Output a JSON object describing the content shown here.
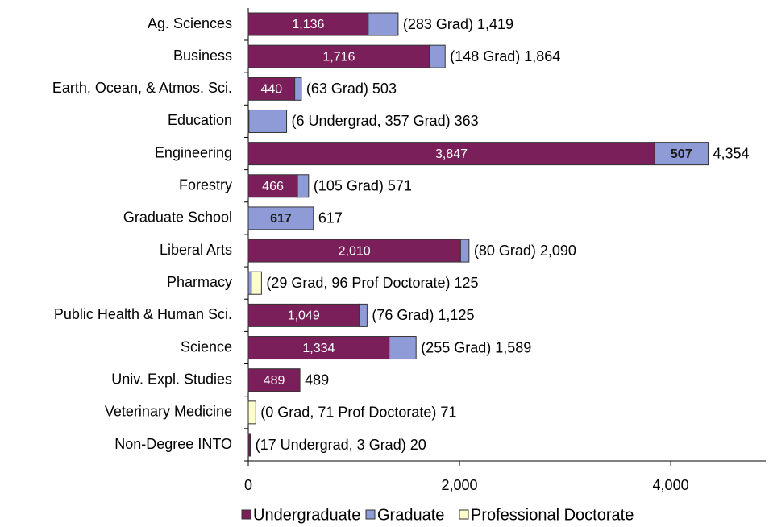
{
  "chart_data": {
    "type": "stacked-bar-horizontal",
    "categories": [
      "Ag. Sciences",
      "Business",
      "Earth, Ocean, & Atmos. Sci.",
      "Education",
      "Engineering",
      "Forestry",
      "Graduate School",
      "Liberal Arts",
      "Pharmacy",
      "Public Health & Human Sci.",
      "Science",
      "Univ. Expl. Studies",
      "Veterinary Medicine",
      "Non-Degree INTO"
    ],
    "series": [
      {
        "name": "Undergraduate",
        "color": "#7b1f5a",
        "label_color": "#ffffff",
        "label_bold": false,
        "values": [
          1136,
          1716,
          440,
          6,
          3847,
          466,
          0,
          2010,
          0,
          1049,
          1334,
          489,
          0,
          17
        ],
        "value_labels": [
          "1,136",
          "1,716",
          "440",
          null,
          "3,847",
          "466",
          null,
          "2,010",
          null,
          "1,049",
          "1,334",
          "489",
          null,
          null
        ]
      },
      {
        "name": "Graduate",
        "color": "#8e9bd6",
        "label_color": "#1a1a1a",
        "label_bold": true,
        "values": [
          283,
          148,
          63,
          357,
          507,
          105,
          617,
          80,
          29,
          76,
          255,
          0,
          0,
          3
        ],
        "value_labels": [
          null,
          null,
          null,
          null,
          "507",
          null,
          "617",
          null,
          null,
          null,
          null,
          null,
          null,
          null
        ]
      },
      {
        "name": "Professional Doctorate",
        "color": "#ffffcc",
        "label_color": "#000000",
        "label_bold": false,
        "values": [
          0,
          0,
          0,
          0,
          0,
          0,
          0,
          0,
          96,
          0,
          0,
          0,
          71,
          0
        ],
        "value_labels": [
          null,
          null,
          null,
          null,
          null,
          null,
          null,
          null,
          null,
          null,
          null,
          null,
          null,
          null
        ]
      }
    ],
    "annotations": [
      "(283 Grad) 1,419",
      "(148 Grad) 1,864",
      "(63 Grad) 503",
      "(6 Undergrad, 357 Grad) 363",
      "4,354",
      "(105 Grad) 571",
      "617",
      "(80 Grad) 2,090",
      "(29 Grad, 96 Prof Doctorate) 125",
      "(76 Grad) 1,125",
      "(255 Grad) 1,589",
      "489",
      "(0 Grad, 71 Prof Doctorate) 71",
      "(17 Undergrad, 3 Grad) 20"
    ],
    "xlim": [
      0,
      4900
    ],
    "xticks": [
      0,
      {
        "value": 2000,
        "label": "2,000"
      },
      {
        "value": 4000,
        "label": "4,000"
      }
    ]
  }
}
